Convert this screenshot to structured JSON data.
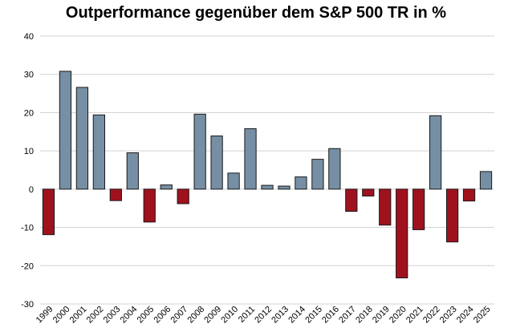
{
  "chart_data": {
    "type": "bar",
    "title": "Outperformance gegenüber dem S&P 500 TR in %",
    "xlabel": "",
    "ylabel": "",
    "ylim": [
      -30,
      40
    ],
    "yticks": [
      40,
      30,
      20,
      10,
      0,
      -10,
      -20,
      -30
    ],
    "grid": true,
    "legend": "none",
    "colors": {
      "positive": "#768fa4",
      "negative": "#a0111e"
    },
    "categories": [
      "1999",
      "2000",
      "2001",
      "2002",
      "2003",
      "2004",
      "2005",
      "2006",
      "2007",
      "2008",
      "2009",
      "2010",
      "2011",
      "2012",
      "2013",
      "2014",
      "2015",
      "2016",
      "2017",
      "2018",
      "2019",
      "2020",
      "2021",
      "2022",
      "2023",
      "2024",
      "2025"
    ],
    "values": [
      -11.9,
      30.8,
      26.6,
      19.4,
      -3.0,
      9.5,
      -8.6,
      1.1,
      -3.8,
      19.6,
      13.9,
      4.2,
      15.8,
      1.0,
      0.8,
      3.2,
      7.8,
      10.6,
      -5.8,
      -1.8,
      -9.4,
      -23.2,
      -10.6,
      19.2,
      -13.8,
      -3.1,
      4.6
    ]
  }
}
